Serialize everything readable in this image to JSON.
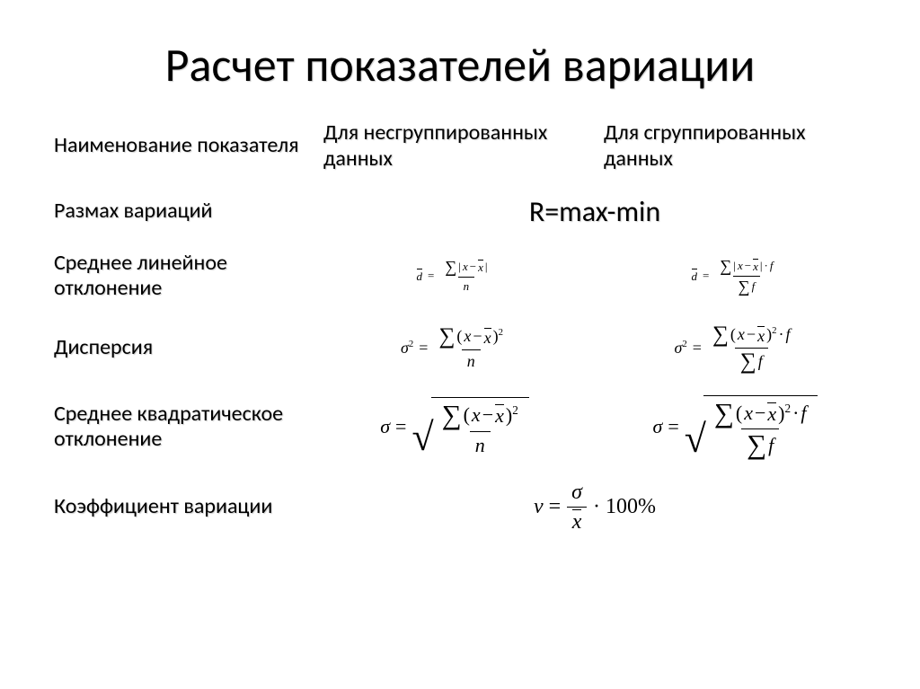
{
  "title": "Расчет показателей вариации",
  "headers": {
    "name": "Наименование показателя",
    "ungrouped": "Для несгруппированных данных",
    "grouped": "Для сгруппированных данных"
  },
  "rows": {
    "range": {
      "label": "Размах вариаций",
      "formula": "R=max-min"
    },
    "mean_linear_dev": {
      "label": "Среднее линейное отклонение",
      "sym_d": "d",
      "sym_eq": "=",
      "sym_sum": "∑",
      "sym_abs_open": "|",
      "sym_x": "x",
      "sym_minus": "−",
      "sym_abs_close": "|",
      "sym_dot": "·",
      "sym_f": "f",
      "sym_n": "n"
    },
    "variance": {
      "label": "Дисперсия",
      "sym_sigma": "σ",
      "sym_sq": "2",
      "sym_eq": "=",
      "sym_sum": "∑",
      "sym_lp": "(",
      "sym_x": "x",
      "sym_minus": "−",
      "sym_rp": ")",
      "sym_dot": "·",
      "sym_f": "f",
      "sym_n": "n"
    },
    "std_dev": {
      "label": "Среднее квадратическое отклонение",
      "sym_sigma": "σ",
      "sym_eq": "=",
      "sym_sqrt": "√",
      "sym_sum": "∑",
      "sym_lp": "(",
      "sym_x": "x",
      "sym_minus": "−",
      "sym_rp": ")",
      "sym_sq": "2",
      "sym_dot": "·",
      "sym_f": "f",
      "sym_n": "n"
    },
    "cv": {
      "label": "Коэффициент вариации",
      "sym_nu": "ν",
      "sym_eq": "=",
      "sym_sigma": "σ",
      "sym_xbar": "x",
      "sym_dot": "·",
      "sym_100pct": "100%"
    }
  },
  "colors": {
    "text": "#000000",
    "background": "#ffffff"
  }
}
